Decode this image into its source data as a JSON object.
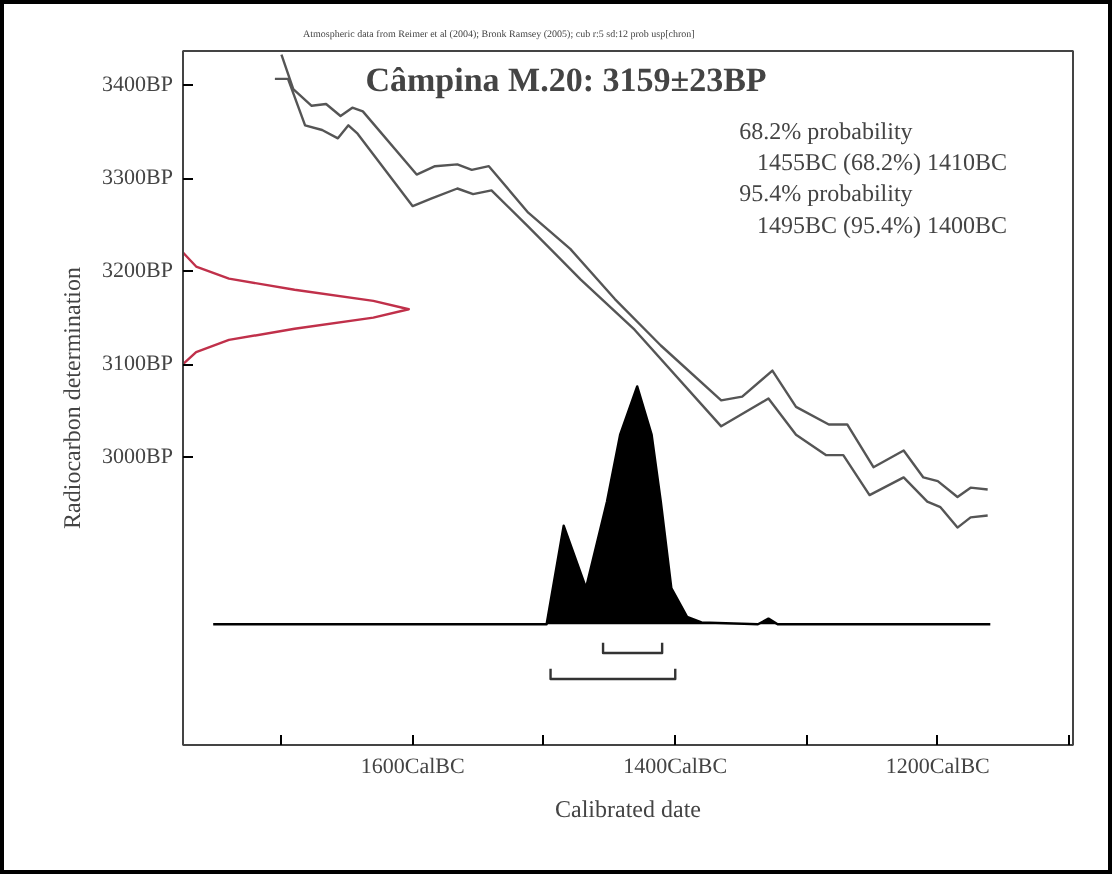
{
  "chart_data": {
    "type": "line",
    "title": "Câmpina M.20: 3159±23BP",
    "xlabel": "Calibrated date",
    "ylabel": "Radiocarbon determination",
    "annotations": [
      "Atmospheric data from Reimer et al (2004); Bronk Ramsey (2005); cub r:5 sd:12 prob usp[chron]",
      "68.2% probability",
      "1455BC (68.2%) 1410BC",
      "95.4% probability",
      "1495BC (95.4%) 1400BC"
    ],
    "xlim": [
      -1775,
      -1097
    ],
    "ylim": [
      2690,
      3437
    ],
    "xticks": [
      {
        "value": -1700,
        "label": null
      },
      {
        "value": -1600,
        "label": "1600CalBC"
      },
      {
        "value": -1500,
        "label": null
      },
      {
        "value": -1400,
        "label": "1400CalBC"
      },
      {
        "value": -1300,
        "label": null
      },
      {
        "value": -1200,
        "label": "1200CalBC"
      },
      {
        "value": -1100,
        "label": null
      }
    ],
    "yticks": [
      {
        "value": 3000,
        "label": "3000BP"
      },
      {
        "value": 3100,
        "label": "3100BP"
      },
      {
        "value": 3200,
        "label": "3200BP"
      },
      {
        "value": 3300,
        "label": "3300BP"
      },
      {
        "value": 3400,
        "label": "3400BP"
      }
    ],
    "grid": false,
    "series": [
      {
        "color": "#555555",
        "x": [
          -1700,
          -1691,
          -1677,
          -1666,
          -1655,
          -1646,
          -1638,
          -1597,
          -1583,
          -1566,
          -1555,
          -1542,
          -1512,
          -1480,
          -1446,
          -1411,
          -1365,
          -1349,
          -1326,
          -1308,
          -1283,
          -1269,
          -1249,
          -1226,
          -1211,
          -1200,
          -1185,
          -1175,
          -1162
        ],
        "values": [
          3433,
          3396,
          3378,
          3380,
          3367,
          3376,
          3372,
          3304,
          3313,
          3315,
          3309,
          3313,
          3263,
          3224,
          3170,
          3120,
          3061,
          3065,
          3093,
          3054,
          3035,
          3035,
          2989,
          3007,
          2978,
          2974,
          2957,
          2967,
          2965
        ]
      },
      {
        "color": "#555555",
        "x": [
          -1705,
          -1695,
          -1682,
          -1669,
          -1657,
          -1649,
          -1642,
          -1600,
          -1586,
          -1566,
          -1554,
          -1540,
          -1512,
          -1472,
          -1431,
          -1365,
          -1329,
          -1308,
          -1285,
          -1272,
          -1252,
          -1226,
          -1208,
          -1198,
          -1185,
          -1175,
          -1162
        ],
        "values": [
          3407,
          3407,
          3357,
          3352,
          3343,
          3357,
          3348,
          3270,
          3278,
          3289,
          3283,
          3287,
          3248,
          3191,
          3137,
          3033,
          3063,
          3024,
          3002,
          3002,
          2959,
          2978,
          2952,
          2946,
          2924,
          2935,
          2937
        ]
      },
      {
        "color": "#c0304a",
        "x": [
          -1775,
          -1765,
          -1740,
          -1690,
          -1630,
          -1603,
          -1630,
          -1690,
          -1740,
          -1765,
          -1775
        ],
        "values": [
          3220,
          3205,
          3192,
          3180,
          3168,
          3159,
          3150,
          3138,
          3126,
          3113,
          3100
        ]
      },
      {
        "type": "area",
        "color": "#000000",
        "x": [
          -1752,
          -1498,
          -1485,
          -1468,
          -1452,
          -1442,
          -1429,
          -1418,
          -1411,
          -1403,
          -1391,
          -1380,
          -1337,
          -1329,
          -1322,
          -1160
        ],
        "values": [
          2820,
          2820,
          2926,
          2859,
          2952,
          3024,
          3076,
          3024,
          2952,
          2859,
          2828,
          2822,
          2820,
          2826,
          2820,
          2820
        ]
      },
      {
        "color": "#333333",
        "x": [
          -1455,
          -1455,
          -1410,
          -1410
        ],
        "values": [
          2800,
          2789,
          2789,
          2800
        ]
      },
      {
        "color": "#333333",
        "x": [
          -1495,
          -1495,
          -1400,
          -1400
        ],
        "values": [
          2772,
          2761,
          2761,
          2772
        ]
      }
    ]
  }
}
